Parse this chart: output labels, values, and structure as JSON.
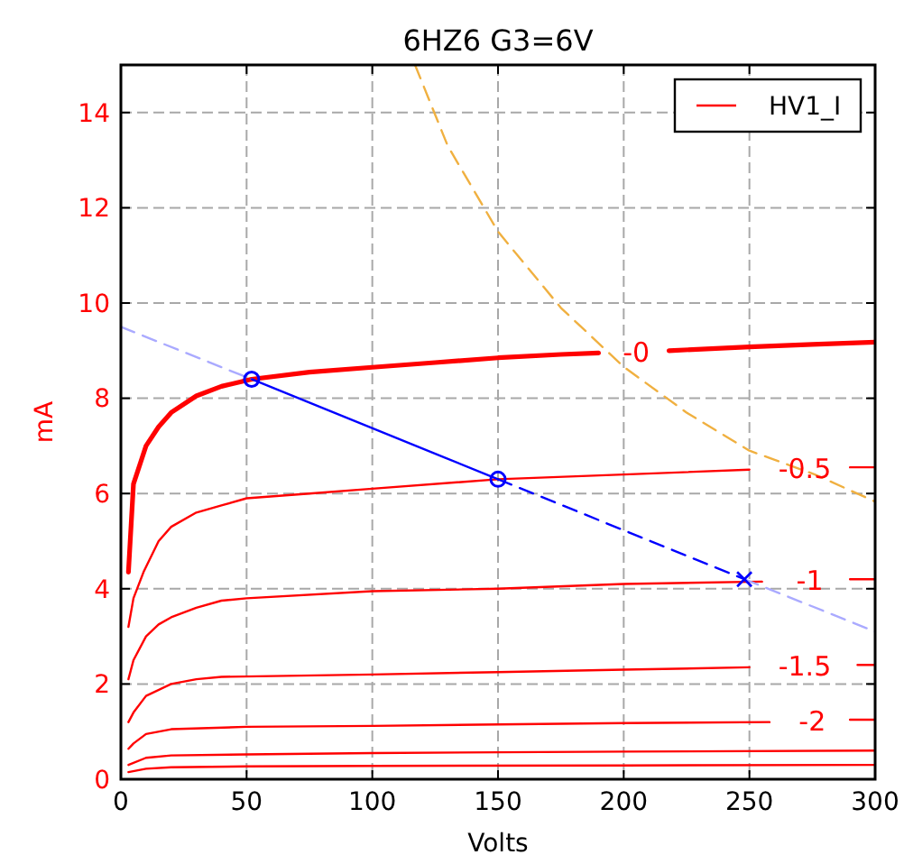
{
  "chart_data": {
    "type": "line",
    "title": "6HZ6 G3=6V",
    "xlabel": "Volts",
    "ylabel": "mA",
    "legend": "top right",
    "grid": true,
    "xlim": [
      0,
      300
    ],
    "xticks": [
      0,
      50,
      100,
      150,
      200,
      250,
      300
    ],
    "ylim": [
      0,
      15
    ],
    "yticks": [
      0,
      2,
      4,
      6,
      8,
      10,
      12,
      14
    ],
    "annotations": [
      "-0",
      "-0.5",
      "-1",
      "-1.5",
      "-2"
    ],
    "series": [
      {
        "name": "HV1_I",
        "color": "#ff0000",
        "x": [
          3,
          5,
          10,
          15,
          20,
          30,
          40,
          52,
          75,
          100,
          125,
          150,
          175,
          190,
          205,
          218,
          250,
          275,
          300
        ],
        "values": [
          4.35,
          6.2,
          7.0,
          7.4,
          7.7,
          8.05,
          8.25,
          8.4,
          8.55,
          8.65,
          8.75,
          8.85,
          8.92,
          8.95,
          null,
          9.0,
          9.08,
          9.13,
          9.18
        ]
      },
      {
        "color": "#ff0000",
        "x": [
          3,
          5,
          9,
          15,
          20,
          30,
          40,
          50,
          75,
          100,
          150,
          200,
          250,
          272,
          290,
          300
        ],
        "values": [
          3.2,
          3.8,
          4.35,
          5.0,
          5.3,
          5.6,
          5.75,
          5.9,
          6.0,
          6.1,
          6.3,
          6.4,
          6.5,
          null,
          6.55,
          6.55
        ]
      },
      {
        "color": "#ff0000",
        "x": [
          3,
          5,
          10,
          15,
          20,
          30,
          40,
          50,
          100,
          150,
          200,
          255,
          274,
          290,
          300
        ],
        "values": [
          2.1,
          2.5,
          3.0,
          3.25,
          3.4,
          3.6,
          3.75,
          3.8,
          3.95,
          4.0,
          4.1,
          4.15,
          null,
          4.2,
          4.2
        ]
      },
      {
        "color": "#ff0000",
        "x": [
          3,
          5,
          10,
          20,
          30,
          40,
          100,
          150,
          200,
          250,
          272,
          293,
          300
        ],
        "values": [
          1.2,
          1.4,
          1.75,
          2.0,
          2.1,
          2.15,
          2.2,
          2.25,
          2.3,
          2.35,
          null,
          2.4,
          2.4
        ]
      },
      {
        "color": "#ff0000",
        "x": [
          3,
          5,
          10,
          20,
          50,
          100,
          150,
          200,
          258,
          275,
          290,
          300
        ],
        "values": [
          0.64,
          0.75,
          0.95,
          1.05,
          1.1,
          1.12,
          1.15,
          1.18,
          1.2,
          null,
          1.25,
          1.25
        ]
      },
      {
        "color": "#ff0000",
        "x": [
          3,
          10,
          20,
          50,
          100,
          200,
          300
        ],
        "values": [
          0.3,
          0.45,
          0.5,
          0.52,
          0.55,
          0.58,
          0.6
        ]
      },
      {
        "color": "#ff0000",
        "x": [
          3,
          10,
          20,
          50,
          100,
          200,
          300
        ],
        "values": [
          0.15,
          0.22,
          0.25,
          0.27,
          0.28,
          0.29,
          0.3
        ]
      },
      {
        "color": "#aaaaff",
        "line_style": "dashed",
        "x": [
          0,
          52
        ],
        "values": [
          9.5,
          8.4
        ]
      },
      {
        "color": "#aaaaff",
        "line_style": "dashed",
        "x": [
          248,
          300
        ],
        "values": [
          4.2,
          3.1
        ]
      },
      {
        "color": "#0000ff",
        "line_style": "dashed",
        "x": [
          150,
          248
        ],
        "values": [
          6.3,
          4.2
        ]
      },
      {
        "color": "#0000ff",
        "marker": "circle",
        "x": [
          52,
          150
        ],
        "values": [
          8.4,
          6.3
        ]
      },
      {
        "type": "scatter",
        "color": "#0000ff",
        "marker": "cross",
        "x": [
          248
        ],
        "values": [
          4.2
        ]
      },
      {
        "color": "#f0b040",
        "line_style": "dashed",
        "x": [
          117,
          130,
          150,
          175,
          200,
          225,
          250,
          276,
          300
        ],
        "values": [
          15,
          13.3,
          11.5,
          9.9,
          8.66,
          7.7,
          6.9,
          6.4,
          5.83
        ]
      }
    ]
  }
}
